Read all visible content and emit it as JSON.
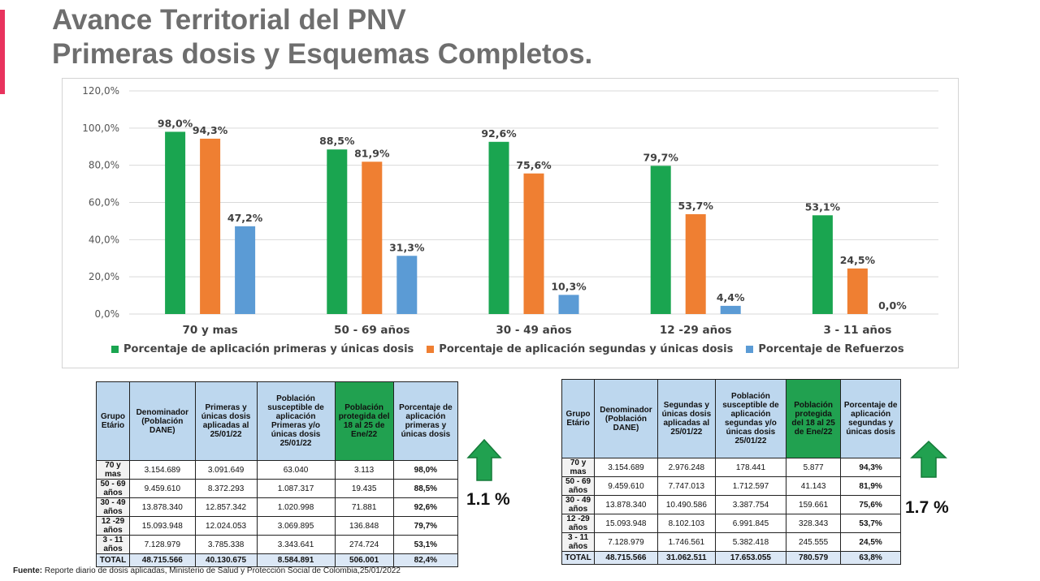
{
  "header": {
    "title_line1": "Avance Territorial del PNV",
    "title_line2": "Primeras dosis y Esquemas Completos."
  },
  "colors": {
    "accent": "#e8335d",
    "green": "#1aa550",
    "orange": "#ef7f32",
    "blue": "#5b9bd5",
    "header_blue": "#bdd7ee",
    "header_green": "#21a150"
  },
  "chart_data": {
    "type": "bar",
    "categories": [
      "70  y mas",
      "50 - 69 años",
      "30 - 49 años",
      "12 -29 años",
      "3 - 11 años"
    ],
    "series": [
      {
        "name": "Porcentaje de aplicación primeras y únicas dosis",
        "color": "#1aa550",
        "values": [
          98.0,
          88.5,
          92.6,
          79.7,
          53.1
        ],
        "labels": [
          "98,0%",
          "88,5%",
          "92,6%",
          "79,7%",
          "53,1%"
        ]
      },
      {
        "name": "Porcentaje de aplicación segundas y únicas dosis",
        "color": "#ef7f32",
        "values": [
          94.3,
          81.9,
          75.6,
          53.7,
          24.5
        ],
        "labels": [
          "94,3%",
          "81,9%",
          "75,6%",
          "53,7%",
          "24,5%"
        ]
      },
      {
        "name": "Porcentaje de Refuerzos",
        "color": "#5b9bd5",
        "values": [
          47.2,
          31.3,
          10.3,
          4.4,
          0.0
        ],
        "labels": [
          "47,2%",
          "31,3%",
          "10,3%",
          "4,4%",
          "0,0%"
        ]
      }
    ],
    "yticks": [
      "0,0%",
      "20,0%",
      "40,0%",
      "60,0%",
      "80,0%",
      "100,0%",
      "120,0%"
    ],
    "ylim": [
      0,
      120
    ],
    "grid": true,
    "legend_position": "bottom"
  },
  "table1": {
    "headers": [
      "Grupo Etário",
      "Denominador (Población DANE)",
      "Primeras y únicas dosis aplicadas al 25/01/22",
      "Población susceptible de aplicación Primeras y/o únicas dosis 25/01/22",
      "Población protegida del 18 al 25 de Ene/22",
      "Porcentaje de aplicación primeras y únicas dosis"
    ],
    "rows": [
      [
        "70 y mas",
        "3.154.689",
        "3.091.649",
        "63.040",
        "3.113",
        "98,0%"
      ],
      [
        "50 - 69 años",
        "9.459.610",
        "8.372.293",
        "1.087.317",
        "19.435",
        "88,5%"
      ],
      [
        "30 - 49 años",
        "13.878.340",
        "12.857.342",
        "1.020.998",
        "71.881",
        "92,6%"
      ],
      [
        "12 -29 años",
        "15.093.948",
        "12.024.053",
        "3.069.895",
        "136.848",
        "79,7%"
      ],
      [
        "3 - 11 años",
        "7.128.979",
        "3.785.338",
        "3.343.641",
        "274.724",
        "53,1%"
      ]
    ],
    "total": [
      "TOTAL",
      "48.715.566",
      "40.130.675",
      "8.584.891",
      "506.001",
      "82,4%"
    ],
    "change_label": "1.1 %"
  },
  "table2": {
    "headers": [
      "Grupo Etário",
      "Denominador (Población DANE)",
      "Segundas y únicas dosis aplicadas al 25/01/22",
      "Población susceptible de aplicación segundas y/o únicas dosis 25/01/22",
      "Población protegida del 18 al 25 de Ene/22",
      "Porcentaje de aplicación segundas y únicas dosis"
    ],
    "rows": [
      [
        "70 y mas",
        "3.154.689",
        "2.976.248",
        "178.441",
        "5.877",
        "94,3%"
      ],
      [
        "50 - 69 años",
        "9.459.610",
        "7.747.013",
        "1.712.597",
        "41.143",
        "81,9%"
      ],
      [
        "30 - 49 años",
        "13.878.340",
        "10.490.586",
        "3.387.754",
        "159.661",
        "75,6%"
      ],
      [
        "12 -29 años",
        "15.093.948",
        "8.102.103",
        "6.991.845",
        "328.343",
        "53,7%"
      ],
      [
        "3 - 11 años",
        "7.128.979",
        "1.746.561",
        "5.382.418",
        "245.555",
        "24,5%"
      ]
    ],
    "total": [
      "TOTAL",
      "48.715.566",
      "31.062.511",
      "17.653.055",
      "780.579",
      "63,8%"
    ],
    "change_label": "1.7 %"
  },
  "footer": {
    "source_label": "Fuente:",
    "source_text": " Reporte diario de dosis aplicadas, Ministerio de Salud y Protección Social de Colombia,25/01/2022"
  }
}
